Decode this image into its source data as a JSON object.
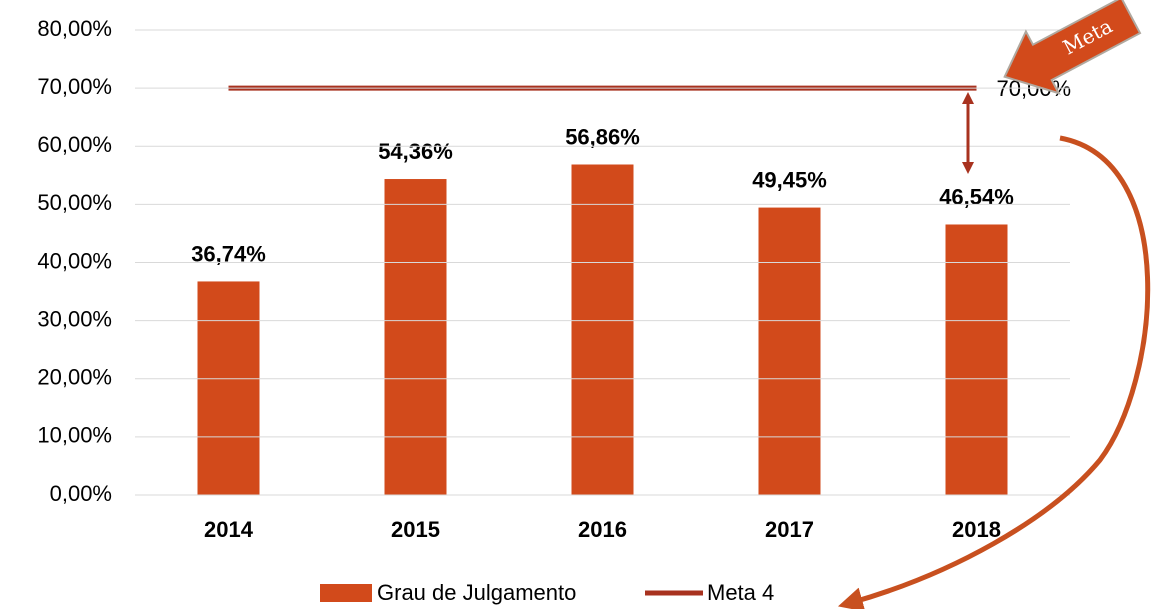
{
  "chart_data": {
    "type": "bar",
    "categories": [
      "2014",
      "2015",
      "2016",
      "2017",
      "2018"
    ],
    "series": [
      {
        "name": "Grau de Julgamento",
        "type": "bar",
        "color": "#d24a1b",
        "values": [
          36.74,
          54.36,
          56.86,
          49.45,
          46.54
        ],
        "value_labels": [
          "36,74%",
          "54,36%",
          "56,86%",
          "49,45%",
          "46,54%"
        ]
      },
      {
        "name": "Meta 4",
        "type": "line",
        "color": "#a8321f",
        "values": [
          70,
          70,
          70,
          70,
          70
        ],
        "value_labels": [
          null,
          null,
          null,
          null,
          "70,00%"
        ]
      }
    ],
    "ylim": [
      0,
      80
    ],
    "yticks": [
      {
        "value": 0,
        "label": "0,00%"
      },
      {
        "value": 10,
        "label": "10,00%"
      },
      {
        "value": 20,
        "label": "20,00%"
      },
      {
        "value": 30,
        "label": "30,00%"
      },
      {
        "value": 40,
        "label": "40,00%"
      },
      {
        "value": 50,
        "label": "50,00%"
      },
      {
        "value": 60,
        "label": "60,00%"
      },
      {
        "value": 70,
        "label": "70,00%"
      },
      {
        "value": 80,
        "label": "80,00%"
      }
    ],
    "grid": true,
    "legend": "bottom",
    "annotation": "Meta"
  }
}
